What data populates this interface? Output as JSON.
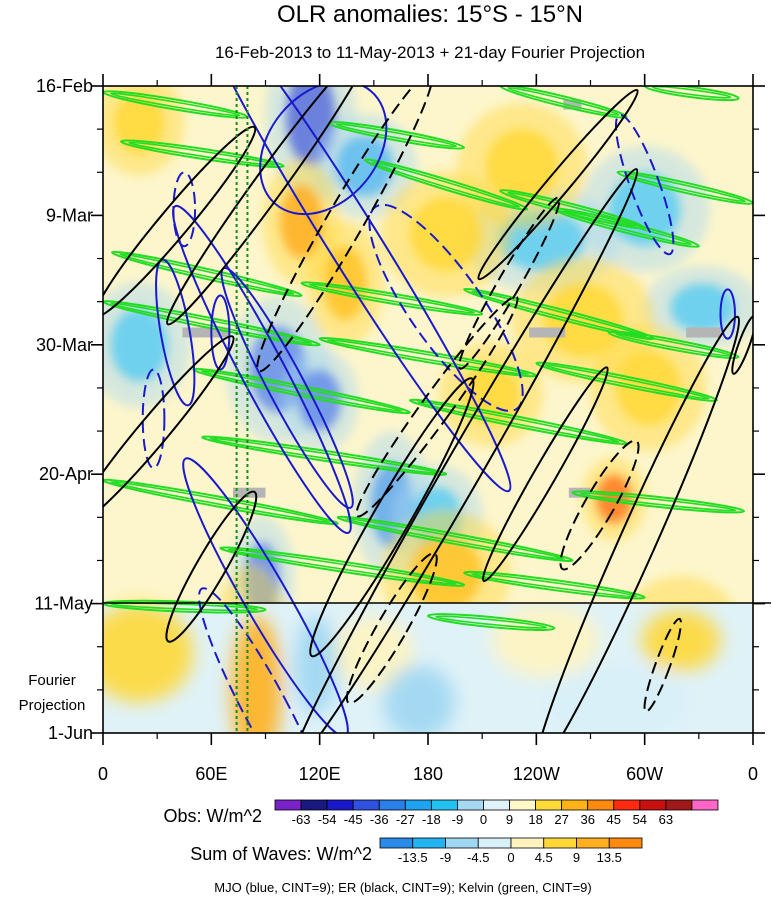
{
  "chart_data": {
    "type": "heatmap",
    "title": "OLR anomalies: 15°S - 15°N",
    "subtitle": "16-Feb-2013 to 11-May-2013 + 21-day Fourier Projection",
    "x_axis": {
      "label": "",
      "tick_labels": [
        "0",
        "60E",
        "120E",
        "180",
        "120W",
        "60W",
        "0"
      ],
      "tick_values_deg": [
        0,
        60,
        120,
        180,
        240,
        300,
        360
      ],
      "range_deg": [
        0,
        360
      ]
    },
    "y_axis": {
      "label": "",
      "tick_labels": [
        "16-Feb",
        "9-Mar",
        "30-Mar",
        "20-Apr",
        "11-May",
        "1-Jun"
      ],
      "tick_values_day": [
        0,
        21,
        42,
        63,
        84,
        105
      ],
      "range_day": [
        0,
        105
      ],
      "projection_label": "Fourier\nProjection",
      "projection_start_label": "11-May"
    },
    "colorbar_obs": {
      "label": "Obs: W/m^2",
      "ticks": [
        "-63",
        "-54",
        "-45",
        "-36",
        "-27",
        "-18",
        "-9",
        "0",
        "9",
        "18",
        "27",
        "36",
        "45",
        "54",
        "63"
      ],
      "colors": [
        "#7a22c9",
        "#191980",
        "#1818c8",
        "#3050e0",
        "#2a7fe8",
        "#1ea3f0",
        "#22c3f0",
        "#a6d8f2",
        "#def3fa",
        "#fff8c8",
        "#ffd83a",
        "#ffb318",
        "#ff8a10",
        "#ff2a10",
        "#c81010",
        "#a01818",
        "#ff66c8"
      ]
    },
    "colorbar_waves": {
      "label": "Sum of Waves: W/m^2",
      "ticks": [
        "-13.5",
        "-9",
        "-4.5",
        "0",
        "4.5",
        "9",
        "13.5"
      ],
      "colors": [
        "#2a8ae8",
        "#22b4f0",
        "#9fd6f2",
        "#d8f0f8",
        "#fff4c0",
        "#ffd838",
        "#ffb020",
        "#ff8a10"
      ]
    },
    "footer": "MJO (blue, CINT=9); ER (black, CINT=9); Kelvin (green, CINT=9)",
    "series": [
      {
        "name": "MJO",
        "color": "#1a1acc"
      },
      {
        "name": "ER",
        "color": "#000000"
      },
      {
        "name": "Kelvin",
        "color": "#22dd22"
      }
    ],
    "reference_lines_deg": [
      74,
      80
    ],
    "obs_features": [
      {
        "lon": 115,
        "day": 5,
        "lon_w": 14,
        "day_h": 8,
        "value": -54
      },
      {
        "lon": 97,
        "day": 46,
        "lon_w": 16,
        "day_h": 7,
        "value": -45
      },
      {
        "lon": 120,
        "day": 51,
        "lon_w": 12,
        "day_h": 5,
        "value": -45
      },
      {
        "lon": 88,
        "day": 80,
        "lon_w": 10,
        "day_h": 6,
        "value": -45
      },
      {
        "lon": 160,
        "day": 68,
        "lon_w": 12,
        "day_h": 7,
        "value": -36
      },
      {
        "lon": 145,
        "day": 13,
        "lon_w": 16,
        "day_h": 5,
        "value": -27
      },
      {
        "lon": 185,
        "day": 70,
        "lon_w": 14,
        "day_h": 5,
        "value": -18
      },
      {
        "lon": 243,
        "day": 25,
        "lon_w": 24,
        "day_h": 5,
        "value": -18
      },
      {
        "lon": 300,
        "day": 20,
        "lon_w": 20,
        "day_h": 6,
        "value": -18
      },
      {
        "lon": 332,
        "day": 36,
        "lon_w": 18,
        "day_h": 4,
        "value": -18
      },
      {
        "lon": 20,
        "day": 42,
        "lon_w": 16,
        "day_h": 6,
        "value": -18
      },
      {
        "lon": 110,
        "day": 22,
        "lon_w": 12,
        "day_h": 6,
        "value": 36
      },
      {
        "lon": 134,
        "day": 32,
        "lon_w": 12,
        "day_h": 6,
        "value": 27
      },
      {
        "lon": 190,
        "day": 24,
        "lon_w": 20,
        "day_h": 6,
        "value": 18
      },
      {
        "lon": 232,
        "day": 13,
        "lon_w": 20,
        "day_h": 6,
        "value": 18
      },
      {
        "lon": 266,
        "day": 38,
        "lon_w": 22,
        "day_h": 6,
        "value": 18
      },
      {
        "lon": 302,
        "day": 49,
        "lon_w": 18,
        "day_h": 6,
        "value": 18
      },
      {
        "lon": 190,
        "day": 79,
        "lon_w": 20,
        "day_h": 6,
        "value": 27
      },
      {
        "lon": 215,
        "day": 50,
        "lon_w": 16,
        "day_h": 5,
        "value": 18
      },
      {
        "lon": 283,
        "day": 67,
        "lon_w": 10,
        "day_h": 4,
        "value": 45
      },
      {
        "lon": 20,
        "day": 6,
        "lon_w": 14,
        "day_h": 5,
        "value": 18
      },
      {
        "lon": 82,
        "day": 98,
        "lon_w": 14,
        "day_h": 12,
        "value": 9
      },
      {
        "lon": 320,
        "day": 88,
        "lon_w": 18,
        "day_h": 5,
        "value": 9
      }
    ],
    "mjo_contours": [
      {
        "lon": 122,
        "day": 10,
        "lon_w": 30,
        "day_h": 12,
        "rot": 40,
        "dashed": false
      },
      {
        "lon": 138,
        "day": 25,
        "lon_w": 14,
        "day_h": 48,
        "rot": -32,
        "dashed": false
      },
      {
        "lon": 88,
        "day": 46,
        "lon_w": 12,
        "day_h": 30,
        "rot": -28,
        "dashed": false
      },
      {
        "lon": 102,
        "day": 49,
        "lon_w": 10,
        "day_h": 22,
        "rot": -28,
        "dashed": false
      },
      {
        "lon": 90,
        "day": 83,
        "lon_w": 12,
        "day_h": 26,
        "rot": -30,
        "dashed": false
      },
      {
        "lon": 40,
        "day": 40,
        "lon_w": 8,
        "day_h": 12,
        "rot": -10,
        "dashed": false
      },
      {
        "lon": 300,
        "day": 16,
        "lon_w": 8,
        "day_h": 12,
        "rot": -20,
        "dashed": true
      },
      {
        "lon": 346,
        "day": 37,
        "lon_w": 4,
        "day_h": 4,
        "rot": 0,
        "dashed": false
      },
      {
        "lon": 90,
        "day": 101,
        "lon_w": 12,
        "day_h": 22,
        "rot": -28,
        "dashed": true
      },
      {
        "lon": 190,
        "day": 36,
        "lon_w": 20,
        "day_h": 20,
        "rot": -35,
        "dashed": true
      },
      {
        "lon": 45,
        "day": 20,
        "lon_w": 6,
        "day_h": 6,
        "rot": 0,
        "dashed": true
      },
      {
        "lon": 28,
        "day": 54,
        "lon_w": 6,
        "day_h": 8,
        "rot": 0,
        "dashed": true
      },
      {
        "lon": 65,
        "day": 40,
        "lon_w": 5,
        "day_h": 6,
        "rot": 0,
        "dashed": false
      }
    ],
    "er_contours": [
      {
        "lon": 252,
        "day": 16,
        "lon_w": 6,
        "day_h": 20,
        "rot": 40,
        "dashed": false
      },
      {
        "lon": 200,
        "day": 62,
        "lon_w": 10,
        "day_h": 56,
        "rot": 30,
        "dashed": false
      },
      {
        "lon": 160,
        "day": 70,
        "lon_w": 10,
        "day_h": 26,
        "rot": 30,
        "dashed": false
      },
      {
        "lon": 134,
        "day": 22,
        "lon_w": 10,
        "day_h": 28,
        "rot": 30,
        "dashed": true
      },
      {
        "lon": 296,
        "day": 74,
        "lon_w": 10,
        "day_h": 40,
        "rot": 24,
        "dashed": false
      },
      {
        "lon": 275,
        "day": 68,
        "lon_w": 8,
        "day_h": 12,
        "rot": 30,
        "dashed": true
      },
      {
        "lon": 40,
        "day": 22,
        "lon_w": 8,
        "day_h": 20,
        "rot": 40,
        "dashed": false
      },
      {
        "lon": 28,
        "day": 56,
        "lon_w": 8,
        "day_h": 20,
        "rot": 40,
        "dashed": false
      },
      {
        "lon": 60,
        "day": 78,
        "lon_w": 8,
        "day_h": 14,
        "rot": 30,
        "dashed": false
      },
      {
        "lon": 185,
        "day": 52,
        "lon_w": 8,
        "day_h": 22,
        "rot": 36,
        "dashed": true
      },
      {
        "lon": 245,
        "day": 63,
        "lon_w": 6,
        "day_h": 20,
        "rot": 30,
        "dashed": false
      },
      {
        "lon": 92,
        "day": 16,
        "lon_w": 8,
        "day_h": 28,
        "rot": 36,
        "dashed": false
      },
      {
        "lon": 310,
        "day": 94,
        "lon_w": 4,
        "day_h": 8,
        "rot": 20,
        "dashed": true
      },
      {
        "lon": 160,
        "day": 88,
        "lon_w": 8,
        "day_h": 14,
        "rot": 30,
        "dashed": true
      },
      {
        "lon": 355,
        "day": 42,
        "lon_w": 3,
        "day_h": 5,
        "rot": 20,
        "dashed": false
      },
      {
        "lon": 225,
        "day": 32,
        "lon_w": 6,
        "day_h": 16,
        "rot": 30,
        "dashed": true
      }
    ],
    "kelvin_bands": [
      {
        "lon0": 0,
        "day0": 1,
        "lon1": 80,
        "day1": 5
      },
      {
        "lon0": 125,
        "day0": 6,
        "lon1": 200,
        "day1": 10
      },
      {
        "lon0": 220,
        "day0": 0,
        "lon1": 290,
        "day1": 5
      },
      {
        "lon0": 300,
        "day0": 0,
        "lon1": 352,
        "day1": 2
      },
      {
        "lon0": 10,
        "day0": 9,
        "lon1": 100,
        "day1": 13
      },
      {
        "lon0": 145,
        "day0": 12,
        "lon1": 235,
        "day1": 20
      },
      {
        "lon0": 250,
        "day0": 20,
        "lon1": 330,
        "day1": 26
      },
      {
        "lon0": 220,
        "day0": 17,
        "lon1": 300,
        "day1": 23
      },
      {
        "lon0": 285,
        "day0": 14,
        "lon1": 360,
        "day1": 19
      },
      {
        "lon0": 5,
        "day0": 27,
        "lon1": 110,
        "day1": 34
      },
      {
        "lon0": 110,
        "day0": 32,
        "lon1": 210,
        "day1": 37
      },
      {
        "lon0": 200,
        "day0": 33,
        "lon1": 305,
        "day1": 41
      },
      {
        "lon0": 280,
        "day0": 40,
        "lon1": 352,
        "day1": 44
      },
      {
        "lon0": 0,
        "day0": 35,
        "lon1": 120,
        "day1": 42
      },
      {
        "lon0": 120,
        "day0": 41,
        "lon1": 240,
        "day1": 47
      },
      {
        "lon0": 240,
        "day0": 45,
        "lon1": 340,
        "day1": 51
      },
      {
        "lon0": 50,
        "day0": 46,
        "lon1": 170,
        "day1": 53
      },
      {
        "lon0": 170,
        "day0": 51,
        "lon1": 290,
        "day1": 58
      },
      {
        "lon0": 55,
        "day0": 57,
        "lon1": 190,
        "day1": 63
      },
      {
        "lon0": 0,
        "day0": 64,
        "lon1": 130,
        "day1": 71
      },
      {
        "lon0": 130,
        "day0": 70,
        "lon1": 260,
        "day1": 77
      },
      {
        "lon0": 260,
        "day0": 66,
        "lon1": 355,
        "day1": 69
      },
      {
        "lon0": 65,
        "day0": 75,
        "lon1": 200,
        "day1": 81
      },
      {
        "lon0": 200,
        "day0": 79,
        "lon1": 300,
        "day1": 83
      },
      {
        "lon0": 0,
        "day0": 84,
        "lon1": 90,
        "day1": 85
      },
      {
        "lon0": 180,
        "day0": 86,
        "lon1": 250,
        "day1": 88
      }
    ],
    "missing_segments": [
      {
        "lon0": 255,
        "lon1": 265,
        "day": 3
      },
      {
        "lon0": 44,
        "lon1": 70,
        "day": 40
      },
      {
        "lon0": 236,
        "lon1": 256,
        "day": 40
      },
      {
        "lon0": 323,
        "lon1": 342,
        "day": 40
      },
      {
        "lon0": 72,
        "lon1": 90,
        "day": 66
      },
      {
        "lon0": 258,
        "lon1": 270,
        "day": 66
      }
    ]
  }
}
